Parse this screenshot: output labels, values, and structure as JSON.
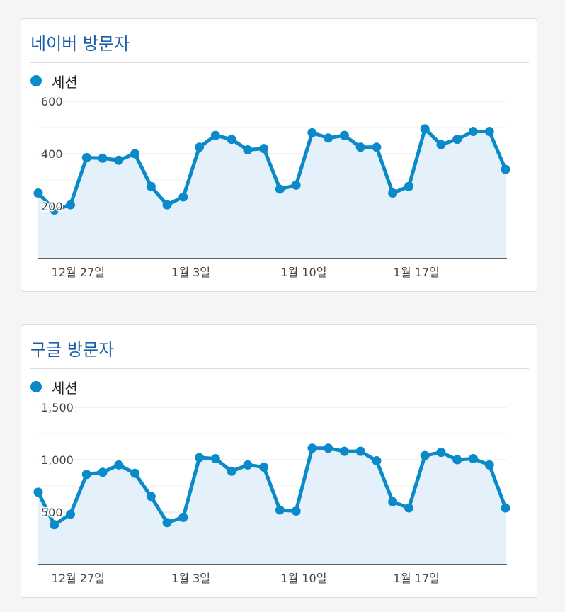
{
  "colors": {
    "series": "#0a8ac9",
    "area": "#e4f1fa",
    "title": "#1b5fa6"
  },
  "chart_data": [
    {
      "type": "area",
      "title": "네이버 방문자",
      "legend": "세션",
      "legend_placement": "top-left",
      "grid": true,
      "ylim": [
        0,
        600
      ],
      "y_ticks": [
        {
          "value": 600,
          "label": "600"
        },
        {
          "value": 400,
          "label": "400"
        },
        {
          "value": 200,
          "label": "200"
        }
      ],
      "x_ticks": [
        {
          "index": 3,
          "label": "12월 27일"
        },
        {
          "index": 10,
          "label": "1월 3일"
        },
        {
          "index": 17,
          "label": "1월 10일"
        },
        {
          "index": 24,
          "label": "1월 17일"
        }
      ],
      "series": [
        {
          "name": "세션",
          "values": [
            250,
            185,
            205,
            385,
            383,
            375,
            400,
            275,
            205,
            235,
            425,
            470,
            455,
            415,
            420,
            265,
            280,
            480,
            460,
            470,
            425,
            425,
            250,
            275,
            495,
            435,
            455,
            485,
            485,
            340
          ]
        }
      ]
    },
    {
      "type": "area",
      "title": "구글 방문자",
      "legend": "세션",
      "legend_placement": "top-left",
      "grid": true,
      "ylim": [
        0,
        1500
      ],
      "y_ticks": [
        {
          "value": 1500,
          "label": "1,500"
        },
        {
          "value": 1000,
          "label": "1,000"
        },
        {
          "value": 500,
          "label": "500"
        }
      ],
      "x_ticks": [
        {
          "index": 3,
          "label": "12월 27일"
        },
        {
          "index": 10,
          "label": "1월 3일"
        },
        {
          "index": 17,
          "label": "1월 10일"
        },
        {
          "index": 24,
          "label": "1월 17일"
        }
      ],
      "series": [
        {
          "name": "세션",
          "values": [
            690,
            380,
            480,
            860,
            880,
            950,
            870,
            650,
            400,
            450,
            1020,
            1010,
            890,
            950,
            930,
            520,
            510,
            1110,
            1110,
            1080,
            1080,
            990,
            600,
            540,
            1040,
            1070,
            1000,
            1010,
            950,
            540
          ]
        }
      ]
    }
  ]
}
